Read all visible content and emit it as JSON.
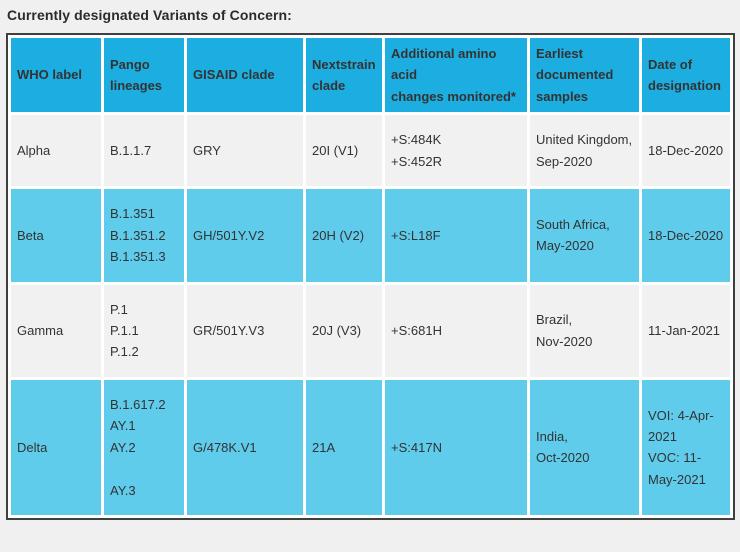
{
  "page": {
    "title": "Currently designated Variants of Concern:"
  },
  "colors": {
    "header_blue": "#1CAEE0",
    "row_cyan": "#5FCCEC",
    "row_gray": "#F1F1F1",
    "table_border": "#3F3F3F",
    "cell_gap_white": "#FFFFFF",
    "page_background": "#F0F0F0",
    "text": "#333333"
  },
  "table": {
    "columns": {
      "who": "WHO label",
      "pango": "Pango lineages",
      "gisaid": "GISAID clade",
      "nextstrain": "Nextstrain clade",
      "changes": "Additional amino acid\nchanges monitored*",
      "earliest": "Earliest documented samples",
      "date": "Date of designation"
    },
    "rows": [
      {
        "who": "Alpha",
        "pango": "B.1.1.7",
        "gisaid": "GRY",
        "nextstrain": "20I (V1)",
        "changes": "+S:484K\n+S:452R",
        "earliest": "United Kingdom,\nSep-2020",
        "date": "18-Dec-2020"
      },
      {
        "who": "Beta",
        "pango": "B.1.351\nB.1.351.2\nB.1.351.3",
        "gisaid": "GH/501Y.V2",
        "nextstrain": "20H (V2)",
        "changes": "+S:L18F",
        "earliest": "South Africa,\nMay-2020",
        "date": "18-Dec-2020"
      },
      {
        "who": "Gamma",
        "pango": "P.1\nP.1.1\nP.1.2",
        "gisaid": "GR/501Y.V3",
        "nextstrain": "20J (V3)",
        "changes": "+S:681H",
        "earliest": "Brazil,\nNov-2020",
        "date": "11-Jan-2021"
      },
      {
        "who": "Delta",
        "pango": "B.1.617.2\nAY.1\nAY.2\n\nAY.3",
        "gisaid": "G/478K.V1",
        "nextstrain": "21A",
        "changes": "+S:417N",
        "earliest": "India,\nOct-2020",
        "date": "VOI: 4-Apr-\n2021\nVOC: 11-\nMay-2021"
      }
    ]
  }
}
